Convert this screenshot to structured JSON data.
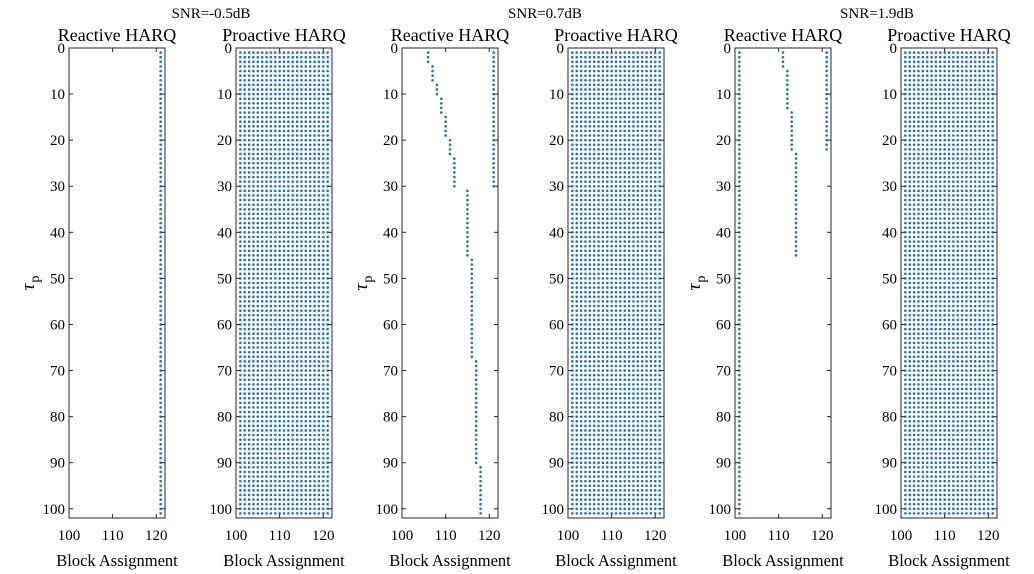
{
  "chart_data": {
    "type": "scatter",
    "marker": "dot",
    "colors": {
      "marker": "#1f72b3",
      "axis": "#262626"
    },
    "groups": [
      {
        "title": "SNR=-0.5dB"
      },
      {
        "title": "SNR=0.7dB"
      },
      {
        "title": "SNR=1.9dB"
      }
    ],
    "panels": [
      {
        "title": "Reactive HARQ",
        "xlabel": "Block Assignment",
        "ylabel": "τ p",
        "xlim": [
          100,
          122
        ],
        "ylim": [
          102,
          0
        ],
        "y_reversed": true,
        "xticks": [
          100,
          110,
          120
        ],
        "yticks": [
          0,
          10,
          20,
          30,
          40,
          50,
          60,
          70,
          80,
          90,
          100
        ],
        "style": "segments",
        "segments": [
          {
            "x": 121,
            "y_from": 1,
            "y_to": 101
          }
        ]
      },
      {
        "title": "Proactive HARQ",
        "xlabel": "Block Assignment",
        "ylabel": "",
        "xlim": [
          100,
          122
        ],
        "ylim": [
          102,
          0
        ],
        "y_reversed": true,
        "xticks": [
          100,
          110,
          120
        ],
        "yticks": [
          0,
          10,
          20,
          30,
          40,
          50,
          60,
          70,
          80,
          90,
          100
        ],
        "style": "grid",
        "grid": {
          "x_from": 101,
          "x_to": 121,
          "y_from": 1,
          "y_to": 101
        }
      },
      {
        "title": "Reactive HARQ",
        "xlabel": "Block Assignment",
        "ylabel": "τ p",
        "xlim": [
          100,
          122
        ],
        "ylim": [
          102,
          0
        ],
        "y_reversed": true,
        "xticks": [
          100,
          110,
          120
        ],
        "yticks": [
          0,
          10,
          20,
          30,
          40,
          50,
          60,
          70,
          80,
          90,
          100
        ],
        "style": "segments",
        "segments": [
          {
            "x": 106,
            "y_from": 1,
            "y_to": 3
          },
          {
            "x": 107,
            "y_from": 4,
            "y_to": 7
          },
          {
            "x": 108,
            "y_from": 8,
            "y_to": 10
          },
          {
            "x": 109,
            "y_from": 11,
            "y_to": 14
          },
          {
            "x": 110,
            "y_from": 15,
            "y_to": 19
          },
          {
            "x": 111,
            "y_from": 20,
            "y_to": 23
          },
          {
            "x": 112,
            "y_from": 24,
            "y_to": 30
          },
          {
            "x": 115,
            "y_from": 31,
            "y_to": 45
          },
          {
            "x": 116,
            "y_from": 46,
            "y_to": 67
          },
          {
            "x": 117,
            "y_from": 68,
            "y_to": 90
          },
          {
            "x": 118,
            "y_from": 91,
            "y_to": 101
          },
          {
            "x": 121,
            "y_from": 1,
            "y_to": 30
          }
        ]
      },
      {
        "title": "Proactive HARQ",
        "xlabel": "Block Assignment",
        "ylabel": "",
        "xlim": [
          100,
          122
        ],
        "ylim": [
          102,
          0
        ],
        "y_reversed": true,
        "xticks": [
          100,
          110,
          120
        ],
        "yticks": [
          0,
          10,
          20,
          30,
          40,
          50,
          60,
          70,
          80,
          90,
          100
        ],
        "style": "grid",
        "grid": {
          "x_from": 101,
          "x_to": 121,
          "y_from": 1,
          "y_to": 101
        }
      },
      {
        "title": "Reactive HARQ",
        "xlabel": "Block Assignment",
        "ylabel": "τ p",
        "xlim": [
          100,
          122
        ],
        "ylim": [
          102,
          0
        ],
        "y_reversed": true,
        "xticks": [
          100,
          110,
          120
        ],
        "yticks": [
          0,
          10,
          20,
          30,
          40,
          50,
          60,
          70,
          80,
          90,
          100
        ],
        "style": "segments",
        "segments": [
          {
            "x": 101,
            "y_from": 1,
            "y_to": 101
          },
          {
            "x": 111,
            "y_from": 1,
            "y_to": 4
          },
          {
            "x": 112,
            "y_from": 5,
            "y_to": 13
          },
          {
            "x": 113,
            "y_from": 14,
            "y_to": 22
          },
          {
            "x": 114,
            "y_from": 23,
            "y_to": 45
          },
          {
            "x": 121,
            "y_from": 1,
            "y_to": 22
          }
        ]
      },
      {
        "title": "Proactive HARQ",
        "xlabel": "Block Assignment",
        "ylabel": "",
        "xlim": [
          100,
          122
        ],
        "ylim": [
          102,
          0
        ],
        "y_reversed": true,
        "xticks": [
          100,
          110,
          120
        ],
        "yticks": [
          0,
          10,
          20,
          30,
          40,
          50,
          60,
          70,
          80,
          90,
          100
        ],
        "style": "grid",
        "grid": {
          "x_from": 101,
          "x_to": 121,
          "y_from": 1,
          "y_to": 101
        }
      }
    ]
  }
}
